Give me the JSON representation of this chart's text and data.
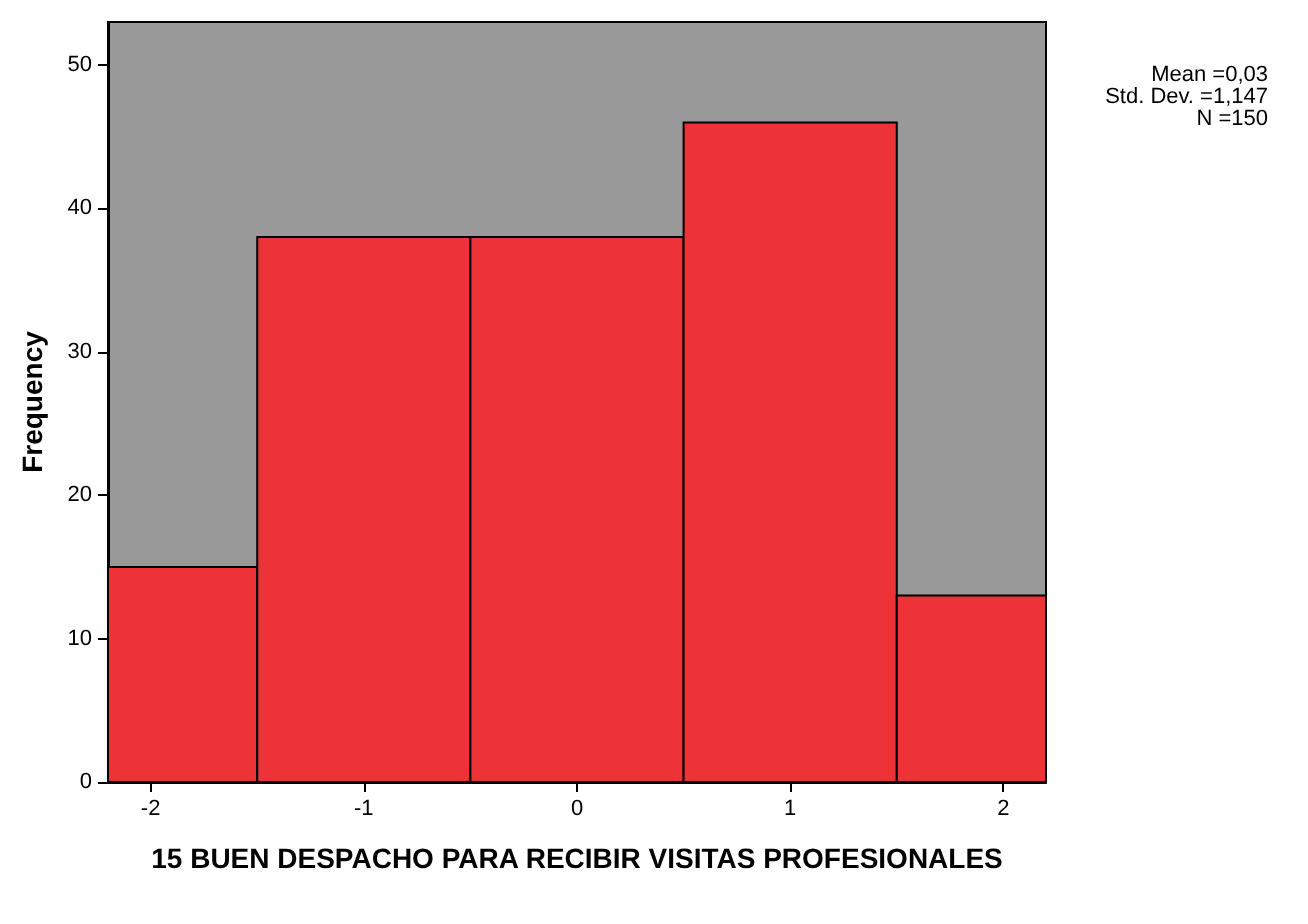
{
  "chart_data": {
    "type": "histogram",
    "xlabel": "15 BUEN DESPACHO PARA RECIBIR VISITAS PROFESIONALES",
    "ylabel": "Frequency",
    "bins": [
      -2.2,
      -1.5,
      -0.5,
      0.5,
      1.5,
      2.2
    ],
    "values": [
      15,
      38,
      38,
      46,
      13
    ],
    "color": "#ee3338",
    "xlim": [
      -2.2,
      2.2
    ],
    "xticks": [
      -2,
      -1,
      0,
      1,
      2
    ],
    "ylim": [
      0,
      53
    ],
    "yticks": [
      0,
      10,
      20,
      30,
      40,
      50
    ],
    "grid": false,
    "annotations": [
      "Mean =0,03",
      "Std. Dev. =1,147",
      "N =150"
    ]
  }
}
